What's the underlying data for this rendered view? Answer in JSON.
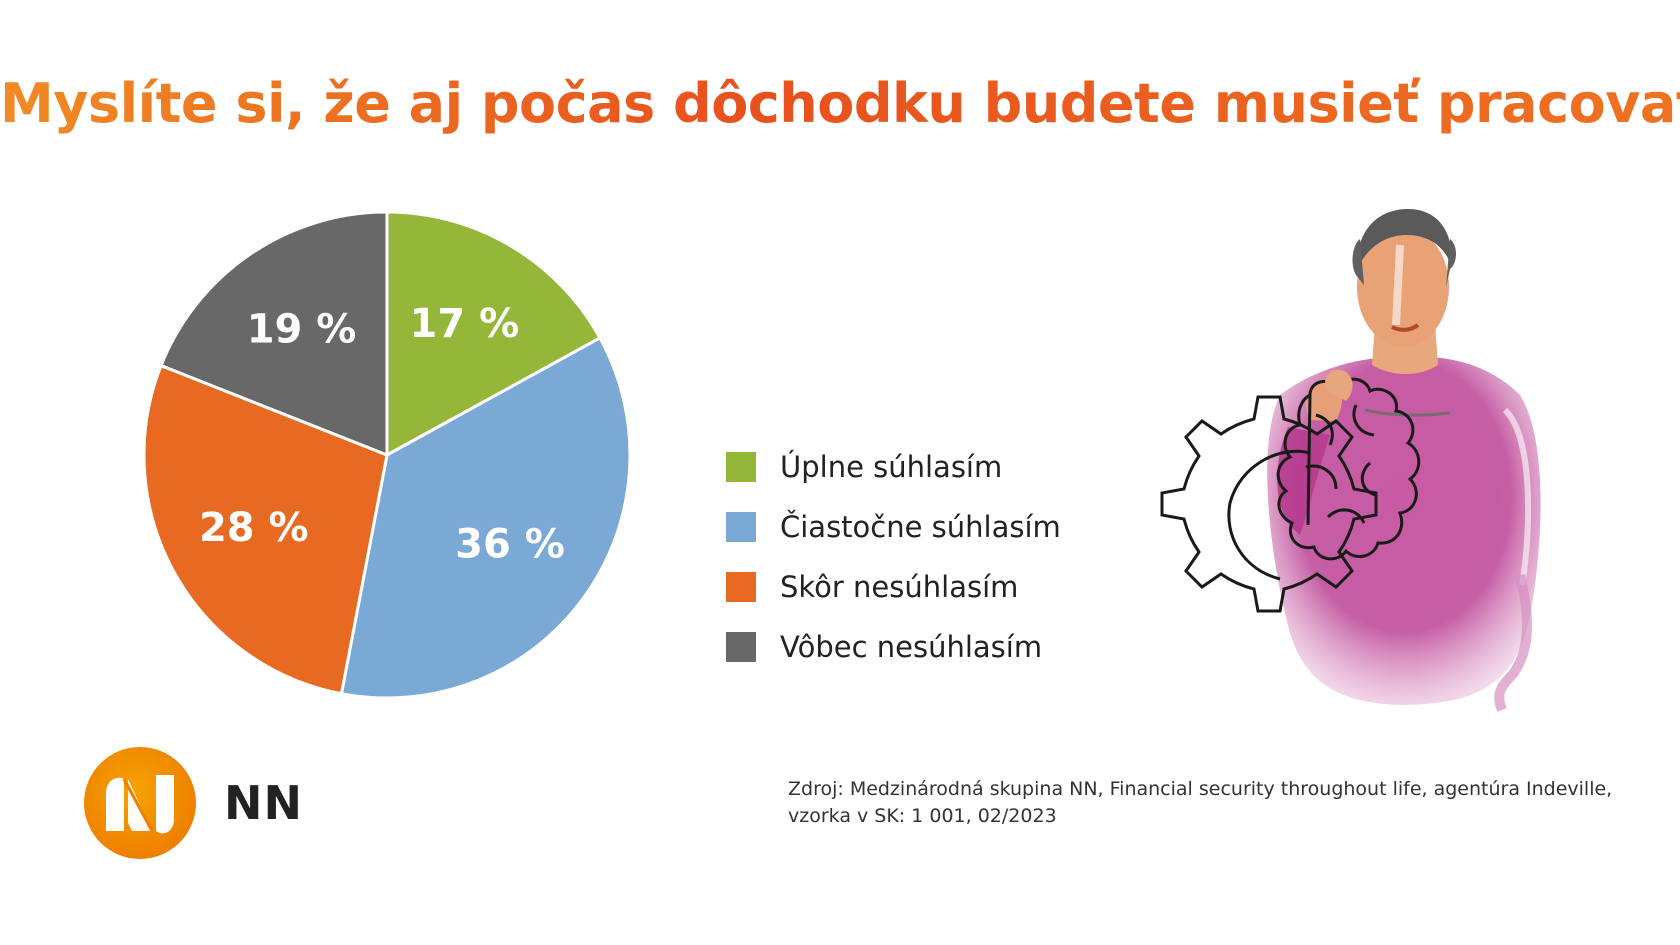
{
  "chart_data": {
    "type": "pie",
    "title": "Myslíte si, že aj počas dôchodku budete musieť pracovať?",
    "slices": [
      {
        "label": "Úplne súhlasím",
        "value": 17,
        "value_label": "17 %",
        "color": "#94b639"
      },
      {
        "label": "Čiastočne súhlasím",
        "value": 36,
        "value_label": "36 %",
        "color": "#7aa9d6"
      },
      {
        "label": "Skôr nesúhlasím",
        "value": 28,
        "value_label": "28 %",
        "color": "#e86a22"
      },
      {
        "label": "Vôbec nesúhlasím",
        "value": 19,
        "value_label": "19 %",
        "color": "#686868"
      }
    ],
    "legend_position": "right",
    "start": "12 o'clock",
    "direction": "clockwise"
  },
  "brand": {
    "name": "NN",
    "logo_colors": [
      "#ee7f00",
      "#f5a300"
    ]
  },
  "source": "Zdroj: Medzinárodná skupina NN, Financial security throughout life, agentúra Indeville, vzorka v SK: 1 001, 02/2023",
  "illustration": {
    "icons": [
      "person-illustration",
      "gear-icon",
      "brain-icon"
    ]
  }
}
